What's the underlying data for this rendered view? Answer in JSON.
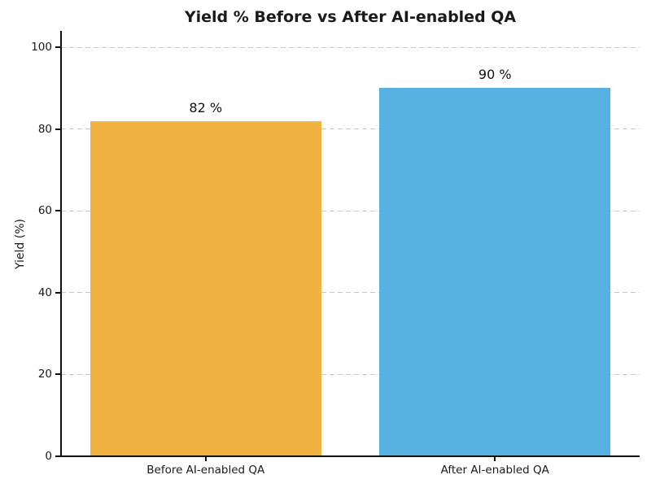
{
  "chart_data": {
    "type": "bar",
    "title": "Yield % Before vs After AI-enabled QA",
    "xlabel": "",
    "ylabel": "Yield (%)",
    "categories": [
      "Before AI-enabled QA",
      "After AI-enabled QA"
    ],
    "values": [
      82,
      90
    ],
    "bar_labels": [
      "82 %",
      "90 %"
    ],
    "bar_colors": [
      "#F2B340",
      "#57B1E1"
    ],
    "yticks": [
      0,
      20,
      40,
      60,
      80,
      100
    ],
    "ylim": [
      0,
      104
    ],
    "grid": "horizontal dashed",
    "grid_color": "#c9c9c9",
    "spine_color": "#111111",
    "legend": "none"
  }
}
